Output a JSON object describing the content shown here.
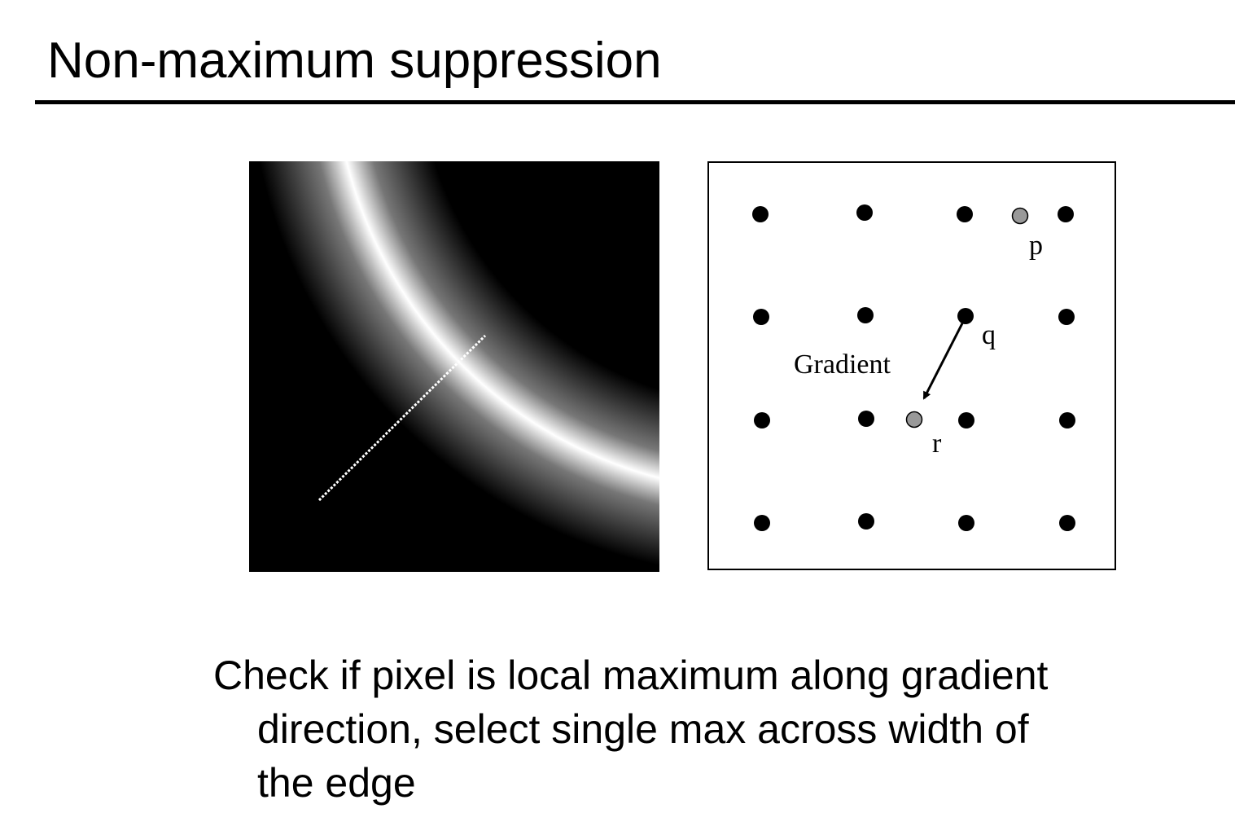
{
  "slide": {
    "title": "Non-maximum suppression"
  },
  "edge_image": {
    "description_label": "blurred edge image with gradient sample line"
  },
  "grid_diagram": {
    "gradient_label": "Gradient",
    "point_labels": {
      "p": "p",
      "q": "q",
      "r": "r"
    },
    "colors": {
      "pixel": "#000000",
      "interpolated_pixel": "#999999",
      "arrow": "#000000"
    }
  },
  "caption": {
    "line1": "Check if pixel is local maximum along gradient",
    "line2": "direction, select single max across width of",
    "line3": "the edge"
  }
}
